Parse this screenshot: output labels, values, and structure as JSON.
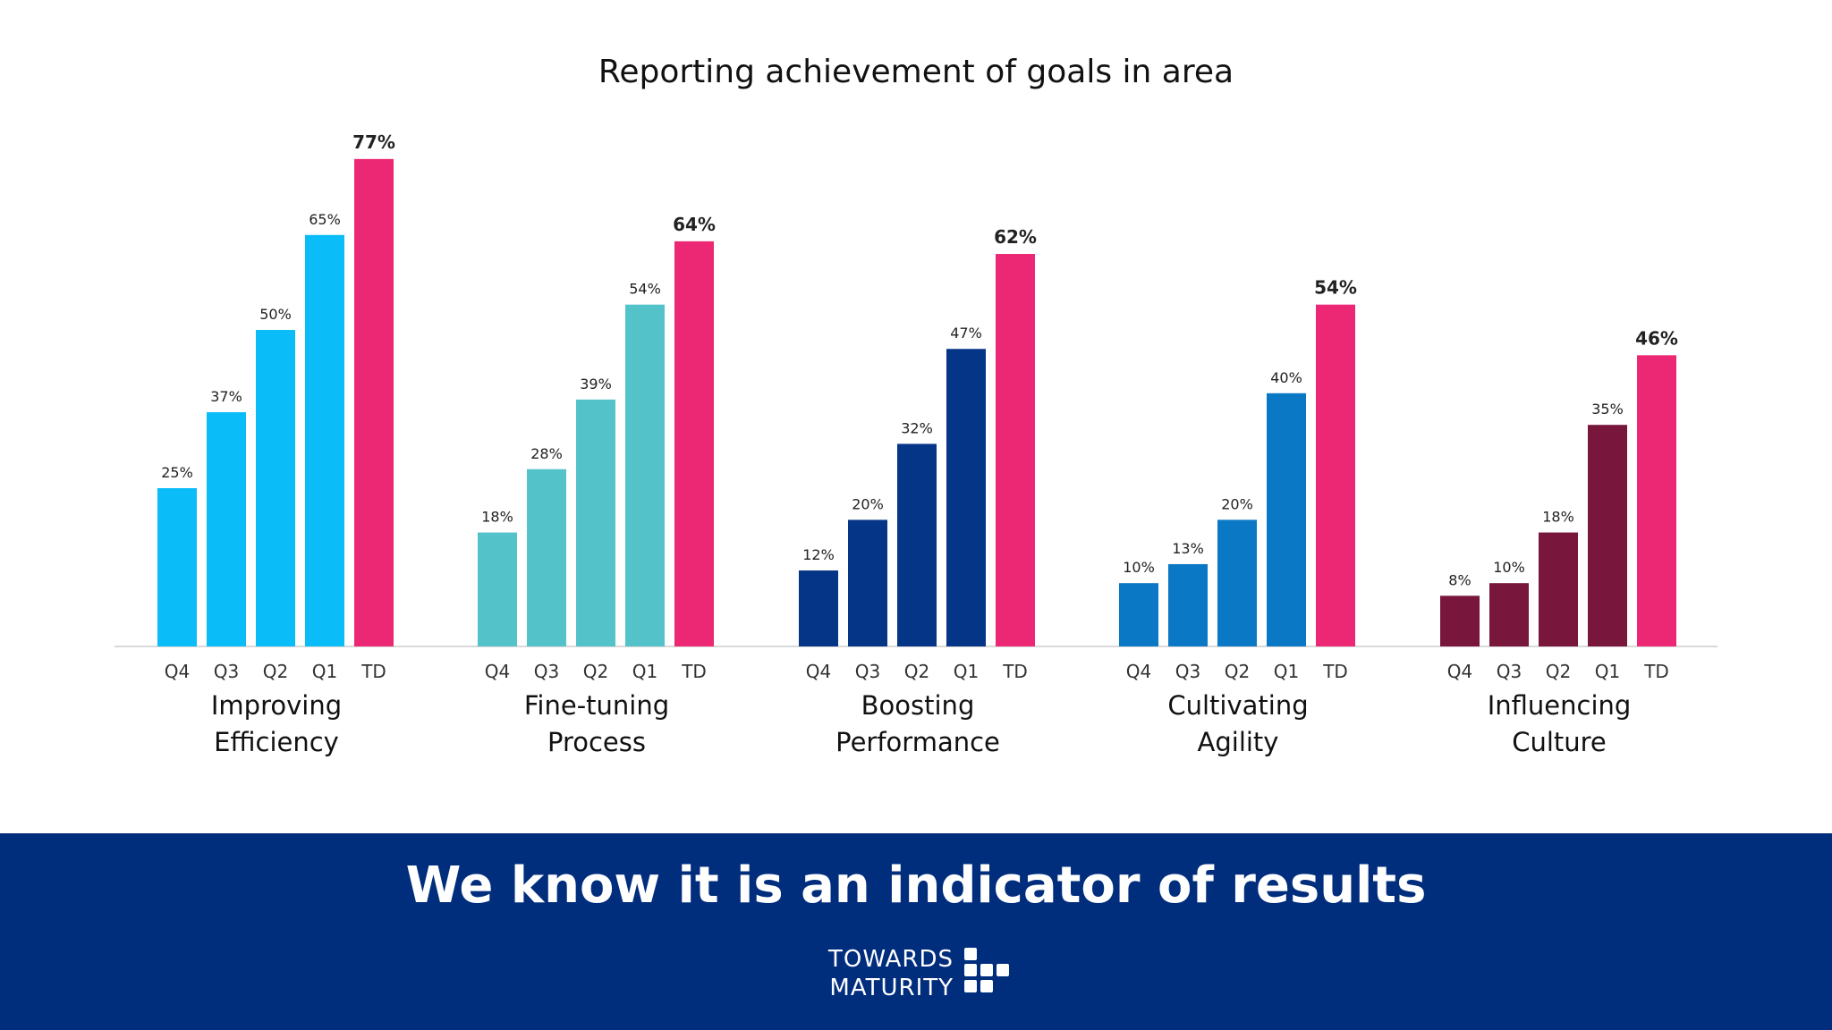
{
  "chart_data": {
    "type": "bar",
    "title": "Reporting achievement of goals in area",
    "categories": [
      "Q4",
      "Q3",
      "Q2",
      "Q1",
      "TD"
    ],
    "ylim": [
      0,
      80
    ],
    "groups": [
      {
        "label_line1": "Improving",
        "label_line2": "Efficiency",
        "values": [
          25,
          37,
          50,
          65,
          77
        ],
        "labels": [
          "25%",
          "37%",
          "50%",
          "65%",
          "77%"
        ],
        "color": "#0abcf8"
      },
      {
        "label_line1": "Fine-tuning",
        "label_line2": "Process",
        "values": [
          18,
          28,
          39,
          54,
          64
        ],
        "labels": [
          "18%",
          "28%",
          "39%",
          "54%",
          "64%"
        ],
        "color": "#53c3c9"
      },
      {
        "label_line1": "Boosting",
        "label_line2": "Performance",
        "values": [
          12,
          20,
          32,
          47,
          62
        ],
        "labels": [
          "12%",
          "20%",
          "32%",
          "47%",
          "62%"
        ],
        "color": "#053587"
      },
      {
        "label_line1": "Cultivating",
        "label_line2": "Agility",
        "values": [
          10,
          13,
          20,
          40,
          54
        ],
        "labels": [
          "10%",
          "13%",
          "20%",
          "40%",
          "54%"
        ],
        "color": "#0a78c4"
      },
      {
        "label_line1": "Influencing",
        "label_line2": "Culture",
        "values": [
          8,
          10,
          18,
          35,
          46
        ],
        "labels": [
          "8%",
          "10%",
          "18%",
          "35%",
          "46%"
        ],
        "color": "#78163b"
      }
    ],
    "highlight_color": "#ec2774",
    "grid": false,
    "legend": "none"
  },
  "footer": {
    "tagline": "We know it is an indicator of results",
    "logo_line1": "TOWARDS",
    "logo_line2": "MATURITY",
    "background_color": "#012d7d"
  }
}
